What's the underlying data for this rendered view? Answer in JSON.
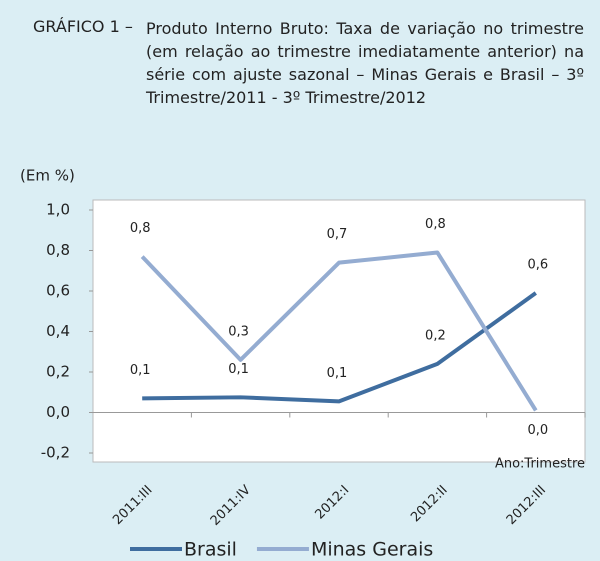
{
  "chart_data": {
    "type": "line",
    "figure_label": "GRÁFICO 1 –",
    "title": "Produto Interno Bruto: Taxa de variação no trimestre (em relação ao trimestre imediatamente anterior) na série com ajuste sazonal – Minas Gerais e Brasil – 3º Trimestre/2011 - 3º Trimestre/2012",
    "y_label": "(Em %)",
    "x_label": "Ano:Trimestre",
    "categories": [
      "2011:III",
      "2011:IV",
      "2012:I",
      "2012:II",
      "2012:III"
    ],
    "series": [
      {
        "name": "Brasil",
        "color": "#3f6d9f",
        "values": [
          0.07,
          0.075,
          0.055,
          0.24,
          0.59
        ],
        "value_labels": [
          "0,1",
          "0,1",
          "0,1",
          "0,2",
          "0,6"
        ]
      },
      {
        "name": "Minas Gerais",
        "color": "#94acd1",
        "values": [
          0.77,
          0.26,
          0.74,
          0.79,
          0.01
        ],
        "value_labels": [
          "0,8",
          "0,3",
          "0,7",
          "0,8",
          "0,0"
        ]
      }
    ],
    "ylim": [
      -0.2,
      1.0
    ],
    "yticks": [
      {
        "value": -0.2,
        "label": "-0,2"
      },
      {
        "value": 0,
        "label": "0,0"
      },
      {
        "value": 0.2,
        "label": "0,2"
      },
      {
        "value": 0.4,
        "label": "0,4"
      },
      {
        "value": 0.6,
        "label": "0,6"
      },
      {
        "value": 0.8,
        "label": "0,8"
      },
      {
        "value": 1.0,
        "label": "1,0"
      }
    ],
    "grid": false,
    "legend": "bottom"
  }
}
